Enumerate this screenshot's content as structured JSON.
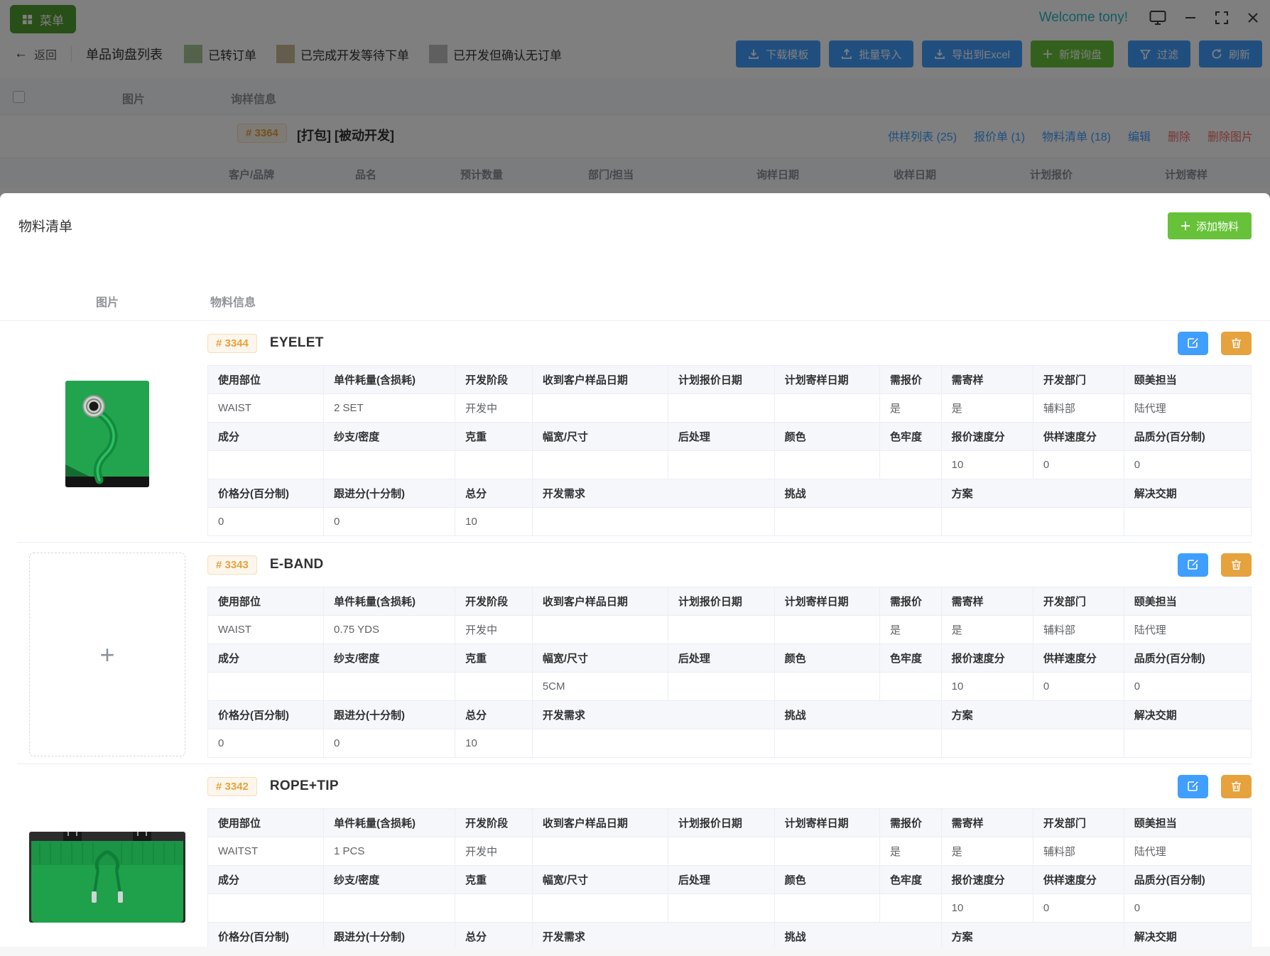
{
  "titlebar": {
    "menu_label": "菜单",
    "welcome": "Welcome tony!"
  },
  "toolbar": {
    "back_label": "返回",
    "page_title": "单品询盘列表",
    "legends": [
      {
        "label": "已转订单",
        "color": "#a8c497"
      },
      {
        "label": "已完成开发等待下单",
        "color": "#c9bb96"
      },
      {
        "label": "已开发但确认无订单",
        "color": "#bfbfbf"
      }
    ],
    "buttons": [
      {
        "label": "下载模板",
        "icon": "download-icon",
        "color": "#409eff"
      },
      {
        "label": "批量导入",
        "icon": "upload-icon",
        "color": "#409eff"
      },
      {
        "label": "导出到Excel",
        "icon": "export-icon",
        "color": "#409eff"
      },
      {
        "label": "新增询盘",
        "icon": "plus-icon",
        "color": "#67c23a"
      },
      {
        "label": "过滤",
        "icon": "filter-icon",
        "color": "#409eff"
      },
      {
        "label": "刷新",
        "icon": "refresh-icon",
        "color": "#409eff"
      }
    ]
  },
  "inquiry_table": {
    "col_image": "图片",
    "col_info": "询样信息",
    "row": {
      "id": "# 3364",
      "tags": "[打包] [被动开发]",
      "links": [
        {
          "label": "供样列表 (25)",
          "color": "#409eff"
        },
        {
          "label": "报价单 (1)",
          "color": "#409eff"
        },
        {
          "label": "物料清单 (18)",
          "color": "#409eff"
        },
        {
          "label": "编辑",
          "color": "#409eff"
        },
        {
          "label": "删除",
          "color": "#f56c6c"
        },
        {
          "label": "删除图片",
          "color": "#f56c6c"
        }
      ],
      "sub_columns": [
        "客户/品牌",
        "品名",
        "预计数量",
        "部门/担当",
        "询样日期",
        "收样日期",
        "计划报价",
        "计划寄样"
      ]
    }
  },
  "modal": {
    "title": "物料清单",
    "add_button": "添加物料",
    "col_image": "图片",
    "col_info": "物料信息",
    "row_headers": {
      "r1": [
        "使用部位",
        "单件耗量(含损耗)",
        "开发阶段",
        "收到客户样品日期",
        "计划报价日期",
        "计划寄样日期",
        "需报价",
        "需寄样",
        "开发部门",
        "颐美担当"
      ],
      "r2": [
        "成分",
        "纱支/密度",
        "克重",
        "幅宽/尺寸",
        "后处理",
        "颜色",
        "色牢度",
        "报价速度分",
        "供样速度分",
        "品质分(百分制)"
      ],
      "r3": [
        "价格分(百分制)",
        "跟进分(十分制)",
        "总分",
        "开发需求",
        "挑战",
        "方案",
        "解决交期"
      ]
    },
    "materials": [
      {
        "id": "# 3344",
        "name": "EYELET",
        "image": "eyelet-photo",
        "v1": [
          "WAIST",
          "2 SET",
          "开发中",
          "",
          "",
          "",
          "是",
          "是",
          "辅料部",
          "陆代理"
        ],
        "v2": [
          "",
          "",
          "",
          "",
          "",
          "",
          "",
          "10",
          "0",
          "0"
        ],
        "v3": [
          "0",
          "0",
          "10",
          "",
          "",
          "",
          ""
        ]
      },
      {
        "id": "# 3343",
        "name": "E-BAND",
        "image": "upload-placeholder",
        "v1": [
          "WAIST",
          "0.75 YDS",
          "开发中",
          "",
          "",
          "",
          "是",
          "是",
          "辅料部",
          "陆代理"
        ],
        "v2": [
          "",
          "",
          "",
          "5CM",
          "",
          "",
          "",
          "10",
          "0",
          "0"
        ],
        "v3": [
          "0",
          "0",
          "10",
          "",
          "",
          "",
          ""
        ]
      },
      {
        "id": "# 3342",
        "name": "ROPE+TIP",
        "image": "shorts-photo",
        "v1": [
          "WAITST",
          "1 PCS",
          "开发中",
          "",
          "",
          "",
          "是",
          "是",
          "辅料部",
          "陆代理"
        ],
        "v2": [
          "",
          "",
          "",
          "",
          "",
          "",
          "",
          "10",
          "0",
          "0"
        ],
        "v3": [
          "",
          "",
          "",
          "",
          "",
          "",
          ""
        ]
      }
    ]
  },
  "theme": {
    "primary": "#409eff",
    "success": "#67c23a",
    "warning": "#e6a23c",
    "danger": "#f56c6c",
    "badge_bg": "#fdf6ec",
    "badge_text": "#e6a23c",
    "welcome_text": "#2bb9c6"
  }
}
